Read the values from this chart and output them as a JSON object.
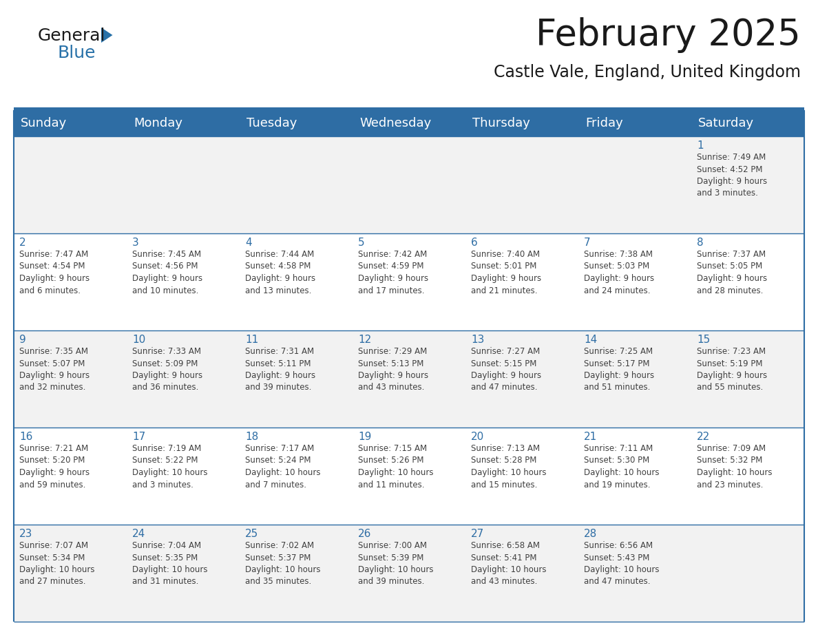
{
  "title": "February 2025",
  "subtitle": "Castle Vale, England, United Kingdom",
  "header_bg_color": "#2E6DA4",
  "header_text_color": "#FFFFFF",
  "row_bg_color_1": "#F2F2F2",
  "row_bg_color_2": "#FFFFFF",
  "text_color_dark": "#1a1a1a",
  "text_color_blue": "#2E6DA4",
  "text_color_cell": "#404040",
  "border_color": "#2E6DA4",
  "logo_general_color": "#1a1a1a",
  "logo_blue_color": "#2871A8",
  "day_headers": [
    "Sunday",
    "Monday",
    "Tuesday",
    "Wednesday",
    "Thursday",
    "Friday",
    "Saturday"
  ],
  "title_fontsize": 38,
  "subtitle_fontsize": 17,
  "header_fontsize": 13,
  "cell_day_fontsize": 11,
  "cell_info_fontsize": 8.5,
  "logo_fontsize": 18,
  "weeks": [
    [
      {
        "day": null,
        "info": null
      },
      {
        "day": null,
        "info": null
      },
      {
        "day": null,
        "info": null
      },
      {
        "day": null,
        "info": null
      },
      {
        "day": null,
        "info": null
      },
      {
        "day": null,
        "info": null
      },
      {
        "day": "1",
        "info": "Sunrise: 7:49 AM\nSunset: 4:52 PM\nDaylight: 9 hours\nand 3 minutes."
      }
    ],
    [
      {
        "day": "2",
        "info": "Sunrise: 7:47 AM\nSunset: 4:54 PM\nDaylight: 9 hours\nand 6 minutes."
      },
      {
        "day": "3",
        "info": "Sunrise: 7:45 AM\nSunset: 4:56 PM\nDaylight: 9 hours\nand 10 minutes."
      },
      {
        "day": "4",
        "info": "Sunrise: 7:44 AM\nSunset: 4:58 PM\nDaylight: 9 hours\nand 13 minutes."
      },
      {
        "day": "5",
        "info": "Sunrise: 7:42 AM\nSunset: 4:59 PM\nDaylight: 9 hours\nand 17 minutes."
      },
      {
        "day": "6",
        "info": "Sunrise: 7:40 AM\nSunset: 5:01 PM\nDaylight: 9 hours\nand 21 minutes."
      },
      {
        "day": "7",
        "info": "Sunrise: 7:38 AM\nSunset: 5:03 PM\nDaylight: 9 hours\nand 24 minutes."
      },
      {
        "day": "8",
        "info": "Sunrise: 7:37 AM\nSunset: 5:05 PM\nDaylight: 9 hours\nand 28 minutes."
      }
    ],
    [
      {
        "day": "9",
        "info": "Sunrise: 7:35 AM\nSunset: 5:07 PM\nDaylight: 9 hours\nand 32 minutes."
      },
      {
        "day": "10",
        "info": "Sunrise: 7:33 AM\nSunset: 5:09 PM\nDaylight: 9 hours\nand 36 minutes."
      },
      {
        "day": "11",
        "info": "Sunrise: 7:31 AM\nSunset: 5:11 PM\nDaylight: 9 hours\nand 39 minutes."
      },
      {
        "day": "12",
        "info": "Sunrise: 7:29 AM\nSunset: 5:13 PM\nDaylight: 9 hours\nand 43 minutes."
      },
      {
        "day": "13",
        "info": "Sunrise: 7:27 AM\nSunset: 5:15 PM\nDaylight: 9 hours\nand 47 minutes."
      },
      {
        "day": "14",
        "info": "Sunrise: 7:25 AM\nSunset: 5:17 PM\nDaylight: 9 hours\nand 51 minutes."
      },
      {
        "day": "15",
        "info": "Sunrise: 7:23 AM\nSunset: 5:19 PM\nDaylight: 9 hours\nand 55 minutes."
      }
    ],
    [
      {
        "day": "16",
        "info": "Sunrise: 7:21 AM\nSunset: 5:20 PM\nDaylight: 9 hours\nand 59 minutes."
      },
      {
        "day": "17",
        "info": "Sunrise: 7:19 AM\nSunset: 5:22 PM\nDaylight: 10 hours\nand 3 minutes."
      },
      {
        "day": "18",
        "info": "Sunrise: 7:17 AM\nSunset: 5:24 PM\nDaylight: 10 hours\nand 7 minutes."
      },
      {
        "day": "19",
        "info": "Sunrise: 7:15 AM\nSunset: 5:26 PM\nDaylight: 10 hours\nand 11 minutes."
      },
      {
        "day": "20",
        "info": "Sunrise: 7:13 AM\nSunset: 5:28 PM\nDaylight: 10 hours\nand 15 minutes."
      },
      {
        "day": "21",
        "info": "Sunrise: 7:11 AM\nSunset: 5:30 PM\nDaylight: 10 hours\nand 19 minutes."
      },
      {
        "day": "22",
        "info": "Sunrise: 7:09 AM\nSunset: 5:32 PM\nDaylight: 10 hours\nand 23 minutes."
      }
    ],
    [
      {
        "day": "23",
        "info": "Sunrise: 7:07 AM\nSunset: 5:34 PM\nDaylight: 10 hours\nand 27 minutes."
      },
      {
        "day": "24",
        "info": "Sunrise: 7:04 AM\nSunset: 5:35 PM\nDaylight: 10 hours\nand 31 minutes."
      },
      {
        "day": "25",
        "info": "Sunrise: 7:02 AM\nSunset: 5:37 PM\nDaylight: 10 hours\nand 35 minutes."
      },
      {
        "day": "26",
        "info": "Sunrise: 7:00 AM\nSunset: 5:39 PM\nDaylight: 10 hours\nand 39 minutes."
      },
      {
        "day": "27",
        "info": "Sunrise: 6:58 AM\nSunset: 5:41 PM\nDaylight: 10 hours\nand 43 minutes."
      },
      {
        "day": "28",
        "info": "Sunrise: 6:56 AM\nSunset: 5:43 PM\nDaylight: 10 hours\nand 47 minutes."
      },
      {
        "day": null,
        "info": null
      }
    ]
  ]
}
